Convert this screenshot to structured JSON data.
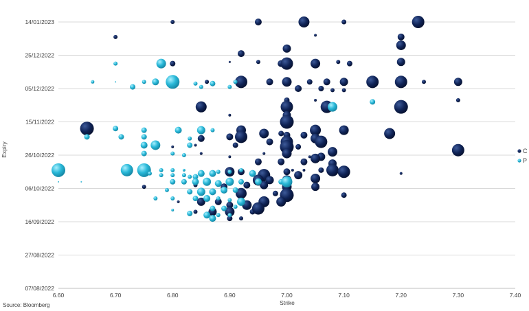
{
  "source_text": "Source: Bloomberg",
  "chart_data": {
    "type": "scatter",
    "subtype": "bubble",
    "xlabel": "Strike",
    "ylabel": "Expiry",
    "xlim": [
      6.6,
      7.4
    ],
    "x_ticks": [
      "6.60",
      "6.70",
      "6.80",
      "6.90",
      "7.00",
      "7.10",
      "7.20",
      "7.30",
      "7.40"
    ],
    "y_ticks": [
      "07/08/2022",
      "27/08/2022",
      "16/09/2022",
      "06/10/2022",
      "26/10/2022",
      "15/11/2022",
      "05/12/2022",
      "25/12/2022",
      "14/01/2023"
    ],
    "y_tick_days": [
      0,
      20,
      40,
      60,
      80,
      100,
      120,
      140,
      160
    ],
    "ylim_days": [
      0,
      160
    ],
    "y_origin_date": "07/08/2022",
    "grid": "horizontal",
    "legend_position": "right",
    "series": [
      {
        "name": "C",
        "color": "#0f2356",
        "points": [
          [
            6.8,
            160,
            3
          ],
          [
            6.95,
            160,
            5
          ],
          [
            7.03,
            160,
            8
          ],
          [
            7.1,
            160,
            3.5
          ],
          [
            7.23,
            160,
            9
          ],
          [
            6.7,
            151,
            3
          ],
          [
            7.05,
            152,
            2
          ],
          [
            7.2,
            151,
            5
          ],
          [
            7.0,
            144,
            6
          ],
          [
            7.2,
            146,
            7
          ],
          [
            6.92,
            141,
            5
          ],
          [
            6.8,
            135,
            4
          ],
          [
            6.9,
            136,
            1.5
          ],
          [
            6.95,
            136,
            3
          ],
          [
            6.99,
            135,
            5
          ],
          [
            7.0,
            135,
            9
          ],
          [
            7.05,
            135,
            7
          ],
          [
            7.09,
            136,
            3
          ],
          [
            7.11,
            135,
            4
          ],
          [
            7.2,
            136,
            6
          ],
          [
            6.86,
            124,
            3
          ],
          [
            6.91,
            124,
            3
          ],
          [
            6.92,
            124,
            9
          ],
          [
            6.97,
            124,
            5
          ],
          [
            7.0,
            124,
            7
          ],
          [
            7.04,
            124,
            4
          ],
          [
            7.07,
            124,
            5
          ],
          [
            7.1,
            124,
            6
          ],
          [
            7.15,
            124,
            9
          ],
          [
            7.2,
            124,
            9
          ],
          [
            7.24,
            124,
            3
          ],
          [
            7.3,
            124,
            6
          ],
          [
            7.02,
            120,
            5
          ],
          [
            7.06,
            120,
            4
          ],
          [
            7.08,
            119,
            3
          ],
          [
            7.1,
            119,
            3
          ],
          [
            7.0,
            113,
            4
          ],
          [
            7.05,
            113,
            2
          ],
          [
            7.3,
            113,
            3
          ],
          [
            6.85,
            109,
            8
          ],
          [
            7.0,
            109,
            9
          ],
          [
            7.07,
            109,
            9
          ],
          [
            7.2,
            109,
            10
          ],
          [
            6.9,
            104,
            2
          ],
          [
            7.0,
            104,
            6
          ],
          [
            7.0,
            100,
            10
          ],
          [
            6.65,
            96,
            10
          ],
          [
            6.85,
            95,
            4
          ],
          [
            6.92,
            95,
            7
          ],
          [
            6.96,
            93,
            7
          ],
          [
            6.99,
            93,
            4
          ],
          [
            7.0,
            92,
            5
          ],
          [
            7.03,
            92,
            5
          ],
          [
            7.05,
            95,
            8
          ],
          [
            7.1,
            95,
            7
          ],
          [
            7.18,
            93,
            8
          ],
          [
            6.9,
            91,
            5
          ],
          [
            6.92,
            91,
            9
          ],
          [
            6.85,
            90,
            5
          ],
          [
            6.97,
            88,
            5
          ],
          [
            7.0,
            88,
            9
          ],
          [
            7.05,
            90,
            7
          ],
          [
            7.06,
            88,
            9
          ],
          [
            6.8,
            85,
            2
          ],
          [
            6.84,
            86,
            2
          ],
          [
            6.91,
            86,
            4
          ],
          [
            7.0,
            85,
            10
          ],
          [
            7.02,
            85,
            4
          ],
          [
            7.08,
            82,
            7
          ],
          [
            7.3,
            83,
            9
          ],
          [
            6.85,
            81,
            2
          ],
          [
            6.96,
            81,
            2
          ],
          [
            7.0,
            81,
            7
          ],
          [
            6.9,
            79,
            2
          ],
          [
            7.04,
            79,
            2
          ],
          [
            7.06,
            79,
            6
          ],
          [
            6.95,
            76,
            5
          ],
          [
            6.99,
            76,
            5
          ],
          [
            7.03,
            76,
            5
          ],
          [
            7.05,
            78,
            7
          ],
          [
            7.08,
            75,
            6
          ],
          [
            7.01,
            71,
            2
          ],
          [
            7.03,
            71,
            2
          ],
          [
            7.06,
            71,
            4
          ],
          [
            7.08,
            71,
            9
          ],
          [
            7.1,
            70,
            9
          ],
          [
            7.2,
            69,
            2
          ],
          [
            6.9,
            70,
            7
          ],
          [
            6.92,
            70,
            5
          ],
          [
            6.94,
            69,
            4
          ],
          [
            6.96,
            68,
            9
          ],
          [
            7.0,
            70,
            5
          ],
          [
            7.02,
            68,
            6
          ],
          [
            6.95,
            65,
            8
          ],
          [
            6.97,
            65,
            6
          ],
          [
            7.0,
            65,
            7
          ],
          [
            7.05,
            66,
            7
          ],
          [
            6.75,
            61,
            3
          ],
          [
            6.84,
            62,
            3
          ],
          [
            6.89,
            61,
            5
          ],
          [
            6.93,
            62,
            5
          ],
          [
            6.96,
            62,
            6
          ],
          [
            7.0,
            61,
            7
          ],
          [
            7.05,
            61,
            6
          ],
          [
            6.92,
            57,
            8
          ],
          [
            6.98,
            57,
            4
          ],
          [
            7.0,
            56,
            10
          ],
          [
            7.1,
            56,
            4
          ],
          [
            6.81,
            52,
            2
          ],
          [
            6.85,
            52,
            6
          ],
          [
            6.88,
            52,
            5
          ],
          [
            6.9,
            50,
            5
          ],
          [
            6.93,
            50,
            7
          ],
          [
            6.96,
            52,
            8
          ],
          [
            6.99,
            52,
            7
          ],
          [
            6.84,
            46,
            3
          ],
          [
            6.87,
            46,
            6
          ],
          [
            6.9,
            46,
            7
          ],
          [
            6.94,
            46,
            4
          ],
          [
            6.95,
            48,
            9
          ],
          [
            6.9,
            42,
            4
          ],
          [
            6.92,
            42,
            3
          ]
        ]
      },
      {
        "name": "P",
        "color": "#29b8d8",
        "points": [
          [
            6.7,
            135,
            3
          ],
          [
            6.78,
            135,
            7
          ],
          [
            6.66,
            124,
            2.5
          ],
          [
            6.7,
            124,
            1
          ],
          [
            6.73,
            121,
            4
          ],
          [
            6.75,
            124,
            3
          ],
          [
            6.77,
            124,
            5
          ],
          [
            6.8,
            124,
            10
          ],
          [
            6.84,
            123,
            3
          ],
          [
            6.85,
            121,
            3
          ],
          [
            6.87,
            123,
            4
          ],
          [
            6.9,
            121,
            3
          ],
          [
            6.91,
            124,
            3
          ],
          [
            7.08,
            109,
            7
          ],
          [
            7.15,
            112,
            4
          ],
          [
            6.7,
            96,
            4
          ],
          [
            6.75,
            95,
            4
          ],
          [
            6.81,
            95,
            5
          ],
          [
            6.85,
            95,
            6
          ],
          [
            6.87,
            95,
            3
          ],
          [
            6.65,
            91,
            4
          ],
          [
            6.71,
            91,
            4
          ],
          [
            6.75,
            91,
            4
          ],
          [
            6.83,
            90,
            3
          ],
          [
            6.75,
            86,
            5
          ],
          [
            6.77,
            86,
            7
          ],
          [
            6.83,
            86,
            4
          ],
          [
            6.75,
            81,
            4
          ],
          [
            6.8,
            81,
            3
          ],
          [
            6.82,
            80,
            3
          ],
          [
            6.6,
            71,
            10
          ],
          [
            6.72,
            71,
            9
          ],
          [
            6.75,
            71,
            10
          ],
          [
            6.78,
            71,
            3
          ],
          [
            6.8,
            71,
            3
          ],
          [
            6.82,
            71,
            2
          ],
          [
            6.76,
            69,
            3
          ],
          [
            6.78,
            68,
            3
          ],
          [
            6.8,
            68,
            3
          ],
          [
            6.82,
            68,
            3
          ],
          [
            6.83,
            67,
            3
          ],
          [
            6.84,
            67,
            4
          ],
          [
            6.85,
            69,
            5
          ],
          [
            6.87,
            69,
            5
          ],
          [
            6.88,
            70,
            3
          ],
          [
            6.9,
            70,
            3
          ],
          [
            6.92,
            71,
            3
          ],
          [
            6.94,
            69,
            5
          ],
          [
            6.8,
            64,
            4
          ],
          [
            6.82,
            64,
            4
          ],
          [
            6.84,
            64,
            5
          ],
          [
            6.86,
            64,
            6
          ],
          [
            6.88,
            63,
            5
          ],
          [
            6.9,
            64,
            6
          ],
          [
            6.92,
            64,
            4
          ],
          [
            6.95,
            64,
            5
          ],
          [
            6.99,
            64,
            4
          ],
          [
            7.0,
            64,
            8
          ],
          [
            6.79,
            59,
            3
          ],
          [
            6.83,
            58,
            4
          ],
          [
            6.85,
            58,
            6
          ],
          [
            6.87,
            58,
            5
          ],
          [
            6.89,
            59,
            5
          ],
          [
            6.91,
            59,
            4
          ],
          [
            6.77,
            54,
            3
          ],
          [
            6.8,
            54,
            3
          ],
          [
            6.84,
            54,
            4
          ],
          [
            6.86,
            54,
            5
          ],
          [
            6.88,
            54,
            3
          ],
          [
            6.9,
            53,
            3
          ],
          [
            6.92,
            53,
            3
          ],
          [
            6.87,
            48,
            4
          ],
          [
            6.89,
            48,
            4
          ],
          [
            6.91,
            49,
            3
          ],
          [
            6.92,
            52,
            6
          ],
          [
            6.8,
            47,
            2
          ],
          [
            6.83,
            45,
            4
          ],
          [
            6.86,
            44,
            5
          ],
          [
            6.88,
            44,
            3
          ],
          [
            6.9,
            44,
            3
          ],
          [
            6.87,
            42,
            5
          ],
          [
            6.6,
            64,
            1
          ],
          [
            6.64,
            64,
            1
          ]
        ]
      }
    ]
  }
}
